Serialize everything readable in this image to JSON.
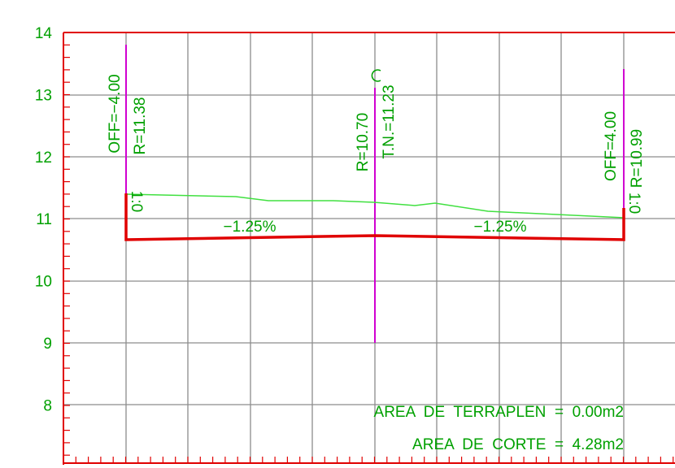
{
  "y_axis": {
    "labels": [
      "14",
      "13",
      "12",
      "11",
      "10",
      "9",
      "8"
    ]
  },
  "left_station": {
    "offset": "OFF=−4.00",
    "elevation": "R=11.38",
    "slope": "1:0"
  },
  "center_station": {
    "elevation": "R=10.70",
    "terrain": "T.N.=11.23"
  },
  "right_station": {
    "offset": "OFF=4.00",
    "elevation": "R=10.99",
    "slope": "1:0"
  },
  "grades": [
    "−1.25%",
    "−1.25%"
  ],
  "areas": {
    "fill": "AREA  DE  TERRAPLEN  =  0.00m2",
    "cut": "AREA  DE  CORTE  =  4.28m2"
  }
}
